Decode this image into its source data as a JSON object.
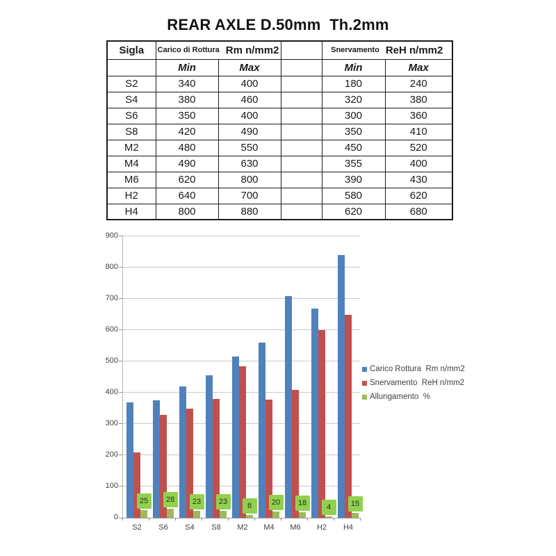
{
  "title": "REAR AXLE D.50mm  Th.2mm",
  "table": {
    "headers": {
      "sigla": "Sigla",
      "group1_small": "Carico di Rottura",
      "group1_big": "Rm n/mm2",
      "group2_small": "Snervamento",
      "group2_big": "ReH n/mm2",
      "min": "Min",
      "max": "Max"
    },
    "rows": [
      {
        "sigla": "S2",
        "rm_min": "340",
        "rm_max": "400",
        "reh_min": "180",
        "reh_max": "240"
      },
      {
        "sigla": "S4",
        "rm_min": "380",
        "rm_max": "460",
        "reh_min": "320",
        "reh_max": "380"
      },
      {
        "sigla": "S6",
        "rm_min": "350",
        "rm_max": "400",
        "reh_min": "300",
        "reh_max": "360"
      },
      {
        "sigla": "S8",
        "rm_min": "420",
        "rm_max": "490",
        "reh_min": "350",
        "reh_max": "410"
      },
      {
        "sigla": "M2",
        "rm_min": "480",
        "rm_max": "550",
        "reh_min": "450",
        "reh_max": "520"
      },
      {
        "sigla": "M4",
        "rm_min": "490",
        "rm_max": "630",
        "reh_min": "355",
        "reh_max": "400"
      },
      {
        "sigla": "M6",
        "rm_min": "620",
        "rm_max": "800",
        "reh_min": "390",
        "reh_max": "430"
      },
      {
        "sigla": "H2",
        "rm_min": "640",
        "rm_max": "700",
        "reh_min": "580",
        "reh_max": "620"
      },
      {
        "sigla": "H4",
        "rm_min": "800",
        "rm_max": "880",
        "reh_min": "620",
        "reh_max": "680"
      }
    ]
  },
  "chart_data": {
    "type": "bar",
    "title": "",
    "categories": [
      "S2",
      "S6",
      "S4",
      "S8",
      "M2",
      "M4",
      "M6",
      "H2",
      "H4"
    ],
    "series": [
      {
        "name": "Carico Rottura  Rm n/mm2",
        "color": "#4f81bd",
        "values": [
          370,
          375,
          420,
          455,
          515,
          560,
          710,
          670,
          840
        ]
      },
      {
        "name": "Snervamento  ReH n/mm2",
        "color": "#c0504d",
        "values": [
          210,
          330,
          350,
          380,
          485,
          377.5,
          410,
          600,
          650
        ]
      },
      {
        "name": "Allungamento  %",
        "color": "#9bbb59",
        "values": [
          25,
          28,
          23,
          23,
          8,
          20,
          18,
          4,
          15
        ],
        "data_labels": true,
        "label_bg": "#92d050"
      }
    ],
    "xlabel": "",
    "ylabel": "",
    "ylim": [
      0,
      900
    ],
    "ytick_step": 100,
    "grid": true,
    "legend_position": "right"
  }
}
